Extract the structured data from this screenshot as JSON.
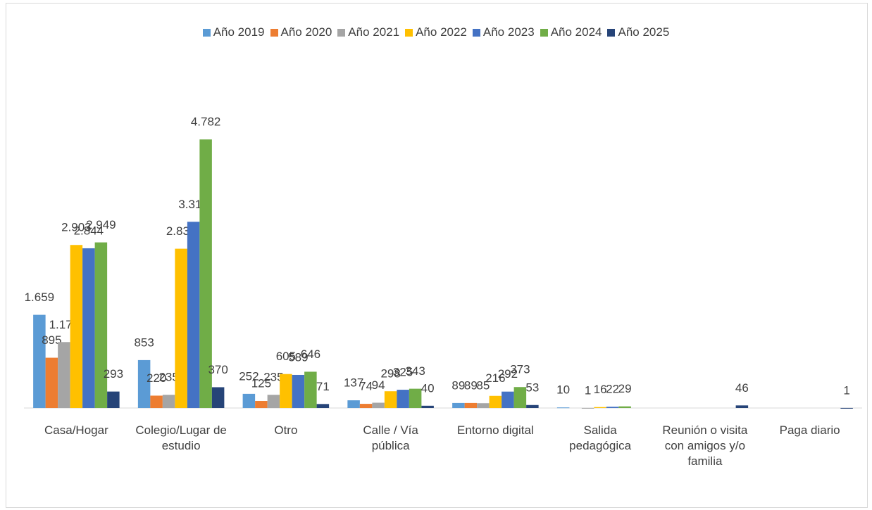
{
  "chart_data": {
    "type": "bar",
    "categories": [
      "Casa/Hogar",
      "Colegio/Lugar de estudio",
      "Otro",
      "Calle / Vía pública",
      "Entorno digital",
      "Salida pedagógica",
      "Reunión o visita con amigos y/o familia",
      "Paga diario"
    ],
    "ylim": [
      0,
      6000
    ],
    "series": [
      {
        "name": "Año 2019",
        "color": "#5b9bd5",
        "values": [
          1659,
          853,
          252,
          137,
          89,
          10,
          null,
          null
        ],
        "value_labels": [
          "1.659",
          "853",
          "252",
          "137",
          "89",
          "10",
          null,
          null
        ]
      },
      {
        "name": "Año 2020",
        "color": "#ed7d31",
        "values": [
          895,
          220,
          125,
          74,
          89,
          null,
          null,
          null
        ],
        "value_labels": [
          "895",
          "220",
          "125",
          "74",
          "89",
          null,
          null,
          null
        ]
      },
      {
        "name": "Año 2021",
        "color": "#a5a5a5",
        "values": [
          1174,
          235,
          235,
          94,
          85,
          1,
          null,
          null
        ],
        "value_labels": [
          "1.174",
          "235",
          "235",
          "94",
          "85",
          "1",
          null,
          null
        ]
      },
      {
        "name": "Año 2022",
        "color": "#ffc000",
        "values": [
          2903,
          2836,
          605,
          298,
          216,
          16,
          null,
          null
        ],
        "value_labels": [
          "2.903",
          "2.836",
          "605",
          "298",
          "216",
          "16",
          null,
          null
        ]
      },
      {
        "name": "Año 2023",
        "color": "#4472c4",
        "values": [
          2844,
          3316,
          589,
          325,
          292,
          22,
          null,
          null
        ],
        "value_labels": [
          "2.844",
          "3.316",
          "589",
          "325",
          "292",
          "22",
          null,
          null
        ]
      },
      {
        "name": "Año 2024",
        "color": "#70ad47",
        "values": [
          2949,
          4782,
          646,
          343,
          373,
          29,
          null,
          null
        ],
        "value_labels": [
          "2.949",
          "4.782",
          "646",
          "343",
          "373",
          "29",
          null,
          null
        ]
      },
      {
        "name": "Año 2025",
        "color": "#264478",
        "values": [
          293,
          370,
          71,
          40,
          53,
          null,
          46,
          1
        ],
        "value_labels": [
          "293",
          "370",
          "71",
          "40",
          "53",
          null,
          "46",
          "1"
        ]
      }
    ]
  }
}
